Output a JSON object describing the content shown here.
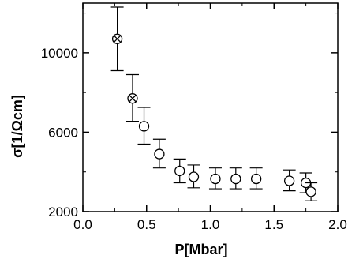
{
  "chart_data": {
    "type": "scatter",
    "title": "",
    "xlabel": "P[Mbar]",
    "ylabel": "σ[1/Ωcm]",
    "xlim": [
      0.0,
      2.0
    ],
    "ylim": [
      2000,
      12500
    ],
    "x_ticks": [
      0.0,
      0.5,
      1.0,
      1.5,
      2.0
    ],
    "x_tick_labels": [
      "0.0",
      "0.5",
      "1.0",
      "1.5",
      "2.0"
    ],
    "y_ticks": [
      2000,
      6000,
      10000
    ],
    "y_tick_labels": [
      "2000",
      "6000",
      "10000"
    ],
    "grid": false,
    "series": [
      {
        "marker": "circle-cross",
        "points": [
          {
            "x": 0.27,
            "y": 10700,
            "err_low": 9100,
            "err_high": 12300
          },
          {
            "x": 0.39,
            "y": 7700,
            "err_low": 6550,
            "err_high": 8900
          }
        ]
      },
      {
        "marker": "circle",
        "points": [
          {
            "x": 0.48,
            "y": 6300,
            "err_low": 5400,
            "err_high": 7250
          },
          {
            "x": 0.6,
            "y": 4900,
            "err_low": 4200,
            "err_high": 5650
          },
          {
            "x": 0.76,
            "y": 4050,
            "err_low": 3450,
            "err_high": 4650
          },
          {
            "x": 0.87,
            "y": 3750,
            "err_low": 3200,
            "err_high": 4350
          },
          {
            "x": 1.04,
            "y": 3650,
            "err_low": 3150,
            "err_high": 4200
          },
          {
            "x": 1.2,
            "y": 3650,
            "err_low": 3150,
            "err_high": 4200
          },
          {
            "x": 1.36,
            "y": 3650,
            "err_low": 3150,
            "err_high": 4200
          },
          {
            "x": 1.62,
            "y": 3550,
            "err_low": 3050,
            "err_high": 4100
          },
          {
            "x": 1.75,
            "y": 3450,
            "err_low": 2950,
            "err_high": 3950
          },
          {
            "x": 1.79,
            "y": 3000,
            "err_low": 2550,
            "err_high": 3450
          }
        ]
      }
    ]
  }
}
